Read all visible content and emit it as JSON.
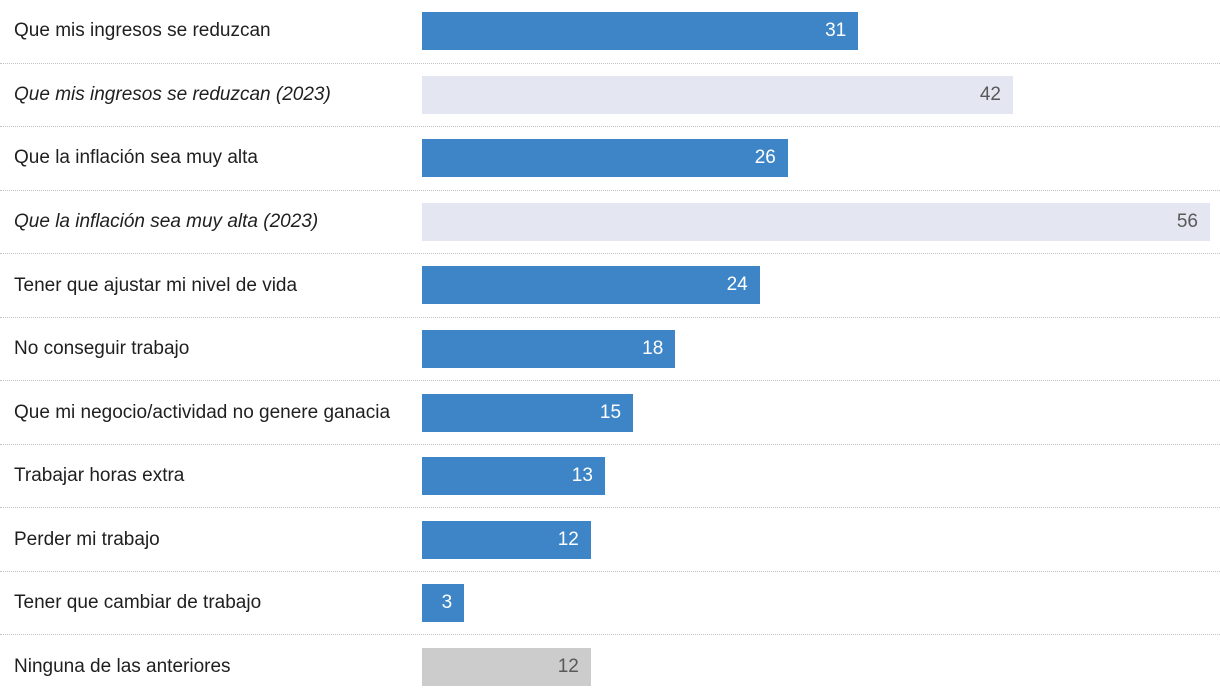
{
  "chart_data": {
    "type": "bar",
    "orientation": "horizontal",
    "title": "",
    "xlabel": "",
    "ylabel": "",
    "value_axis_max": 56,
    "grid": false,
    "legend": false,
    "rows": [
      {
        "label": "Que mis ingresos se reduzcan",
        "value": 31,
        "style": "current"
      },
      {
        "label": "Que mis ingresos se reduzcan (2023)",
        "value": 42,
        "style": "previous"
      },
      {
        "label": "Que la inflación sea muy alta",
        "value": 26,
        "style": "current"
      },
      {
        "label": "Que la inflación sea muy alta (2023)",
        "value": 56,
        "style": "previous"
      },
      {
        "label": "Tener que ajustar mi nivel de vida",
        "value": 24,
        "style": "current"
      },
      {
        "label": "No conseguir trabajo",
        "value": 18,
        "style": "current"
      },
      {
        "label": "Que mi negocio/actividad no genere ganacia",
        "value": 15,
        "style": "current"
      },
      {
        "label": "Trabajar horas extra",
        "value": 13,
        "style": "current"
      },
      {
        "label": "Perder mi trabajo",
        "value": 12,
        "style": "current"
      },
      {
        "label": "Tener que cambiar de trabajo",
        "value": 3,
        "style": "current"
      },
      {
        "label": "Ninguna de las anteriores",
        "value": 12,
        "style": "none"
      }
    ],
    "colors": {
      "current": "#3d85c6",
      "previous": "#e4e7f2",
      "none": "#cccccc",
      "value_on_dark": "#ffffff",
      "value_on_light": "#595959",
      "separator": "#c3c3c3",
      "label_text": "#1f1f1f"
    }
  }
}
